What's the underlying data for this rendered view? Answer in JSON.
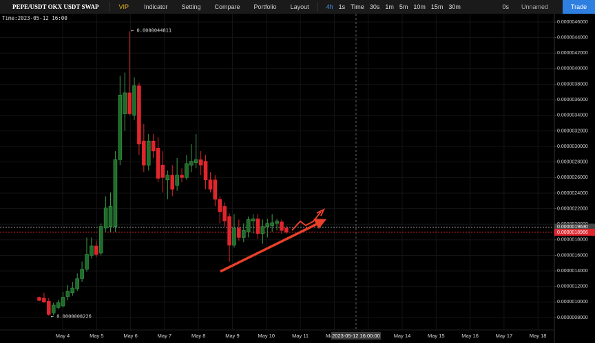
{
  "toolbar": {
    "symbol": "PEPE/USDT OKX USDT SWAP",
    "items": [
      "VIP",
      "Indicator",
      "Setting",
      "Compare",
      "Portfolio",
      "Layout"
    ],
    "intervals": [
      "4h",
      "1s",
      "Time",
      "30s",
      "1m",
      "5m",
      "10m",
      "15m",
      "30m"
    ],
    "timer": "0s",
    "layout_name": "Unnamed",
    "trade": "Trade"
  },
  "chart_data": {
    "type": "candlestick",
    "info": "Time:2023-05-12 16:00",
    "up_color": "#1f6b2a",
    "down_color": "#e0262d",
    "grid": true,
    "x": [
      3.31,
      3.45,
      3.59,
      3.73,
      3.87,
      4.01,
      4.15,
      4.29,
      4.43,
      4.57,
      4.71,
      4.85,
      4.99,
      5.13,
      5.27,
      5.41,
      5.55,
      5.69,
      5.83,
      5.97,
      6.11,
      6.25,
      6.39,
      6.53,
      6.67,
      6.81,
      6.95,
      7.09,
      7.23,
      7.37,
      7.51,
      7.65,
      7.79,
      7.93,
      8.07,
      8.21,
      8.35,
      8.49,
      8.63,
      8.77,
      8.91,
      9.05,
      9.19,
      9.33,
      9.47,
      9.61,
      9.75,
      9.89,
      10.03,
      10.17,
      10.31,
      10.45,
      10.59
    ],
    "open": [
      1.06e-06,
      1.05e-06,
      1.01e-06,
      8.6e-07,
      9.3e-07,
      9.5e-07,
      1.07e-06,
      1.12e-06,
      1.17e-06,
      1.3e-06,
      1.42e-06,
      1.6e-06,
      1.72e-06,
      1.63e-06,
      1.95e-06,
      1.97e-06,
      1.97e-06,
      2.83e-06,
      3.42e-06,
      3.69e-06,
      3.4e-06,
      3.78e-06,
      3.07e-06,
      2.76e-06,
      3.07e-06,
      2.98e-06,
      2.76e-06,
      2.57e-06,
      2.63e-06,
      2.5e-06,
      2.63e-06,
      2.6e-06,
      2.76e-06,
      2.79e-06,
      2.83e-06,
      2.81e-06,
      2.57e-06,
      2.57e-06,
      2.32e-06,
      2.23e-06,
      2.1e-06,
      1.73e-06,
      1.95e-06,
      1.83e-06,
      1.9e-06,
      2.04e-06,
      2.07e-06,
      1.88e-06,
      1.97e-06,
      1.98e-06,
      2.01e-06,
      2.03e-06,
      1.95e-06
    ],
    "high": [
      1.07e-06,
      1.12e-06,
      1.05e-06,
      9.9e-07,
      1.03e-06,
      1.13e-06,
      1.22e-06,
      1.26e-06,
      1.37e-06,
      1.52e-06,
      1.83e-06,
      1.83e-06,
      1.79e-06,
      2.01e-06,
      2.36e-06,
      2.41e-06,
      2.94e-06,
      3.91e-06,
      3.95e-06,
      4.4811e-06,
      3.89e-06,
      3.82e-06,
      3.29e-06,
      3.16e-06,
      3.16e-06,
      3.12e-06,
      2.94e-06,
      2.69e-06,
      2.76e-06,
      2.85e-06,
      2.72e-06,
      2.89e-06,
      3.03e-06,
      3.16e-06,
      2.94e-06,
      2.89e-06,
      2.67e-06,
      2.63e-06,
      2.36e-06,
      2.28e-06,
      2.14e-06,
      2.13e-06,
      2.06e-06,
      2.01e-06,
      2.1e-06,
      2.13e-06,
      2.13e-06,
      2.06e-06,
      2.07e-06,
      2.13e-06,
      2.07e-06,
      2.06e-06,
      1.98e-06
    ],
    "low": [
      1.01e-06,
      9.9e-07,
      8.226e-07,
      8.3e-07,
      9.1e-07,
      9.3e-07,
      1.02e-06,
      1.08e-06,
      1.14e-06,
      1.26e-06,
      1.39e-06,
      1.56e-06,
      1.58e-06,
      1.6e-06,
      1.9e-06,
      1.9e-06,
      1.9e-06,
      2.76e-06,
      3.2e-06,
      3.4e-06,
      3.34e-06,
      2.89e-06,
      2.67e-06,
      2.69e-06,
      2.85e-06,
      2.54e-06,
      2.41e-06,
      2.32e-06,
      2.36e-06,
      2.43e-06,
      2.54e-06,
      2.57e-06,
      2.67e-06,
      2.72e-06,
      2.63e-06,
      2.45e-06,
      2.41e-06,
      2.23e-06,
      2.01e-06,
      1.97e-06,
      1.52e-06,
      1.7e-06,
      1.79e-06,
      1.77e-06,
      1.83e-06,
      1.88e-06,
      1.81e-06,
      1.75e-06,
      1.83e-06,
      1.9e-06,
      1.92e-06,
      1.88e-06,
      1.88e-06
    ],
    "close": [
      1.02e-06,
      1e-06,
      8.4e-07,
      9.6e-07,
      9.9e-07,
      1.06e-06,
      1.14e-06,
      1.18e-06,
      1.3e-06,
      1.42e-06,
      1.61e-06,
      1.72e-06,
      1.61e-06,
      1.97e-06,
      2.21e-06,
      2.23e-06,
      2.83e-06,
      3.66e-06,
      3.69e-06,
      3.42e-06,
      3.78e-06,
      3.03e-06,
      2.76e-06,
      3.07e-06,
      2.94e-06,
      2.59e-06,
      2.6e-06,
      2.63e-06,
      2.45e-06,
      2.63e-06,
      2.6e-06,
      2.78e-06,
      2.81e-06,
      2.83e-06,
      2.76e-06,
      2.57e-06,
      2.45e-06,
      2.32e-06,
      2.16e-06,
      2.04e-06,
      1.73e-06,
      1.95e-06,
      1.83e-06,
      1.92e-06,
      2.06e-06,
      2.07e-06,
      1.88e-06,
      1.97e-06,
      2.01e-06,
      2.02e-06,
      2.04e-06,
      1.92e-06,
      1.8966e-06
    ],
    "extreme_labels": {
      "high": "← 0.0000044811",
      "low": "← 0.0000008226"
    },
    "price_lines": [
      {
        "value": 1.963e-06,
        "label": "0.0000019630",
        "color": "#9a9a9a"
      },
      {
        "value": 1.8966e-06,
        "label": "0.0000018966",
        "color": "#e0262d"
      }
    ],
    "crosshair": {
      "x": 12.64,
      "label": "2023-05-12 16:00:00"
    },
    "xlim": [
      2.154,
      18.483
    ],
    "xticks": [
      {
        "value": 4,
        "label": "May 4"
      },
      {
        "value": 5,
        "label": "May 5"
      },
      {
        "value": 6,
        "label": "May 6"
      },
      {
        "value": 7,
        "label": "May 7"
      },
      {
        "value": 8,
        "label": "May 8"
      },
      {
        "value": 9,
        "label": "May 9"
      },
      {
        "value": 10,
        "label": "May 10"
      },
      {
        "value": 11,
        "label": "May 11"
      },
      {
        "value": 12,
        "label": "May 12"
      },
      {
        "value": 13,
        "label": "May 13"
      },
      {
        "value": 14,
        "label": "May 14"
      },
      {
        "value": 15,
        "label": "May 15"
      },
      {
        "value": 16,
        "label": "May 16"
      },
      {
        "value": 17,
        "label": "May 17"
      },
      {
        "value": 18,
        "label": "May 18"
      }
    ],
    "ylim": [
      6.41e-07,
      4.706e-06
    ],
    "yticks": [
      {
        "value": 8e-07,
        "label": "0.0000008000"
      },
      {
        "value": 1e-06,
        "label": "0.0000010000"
      },
      {
        "value": 1.2e-06,
        "label": "0.0000012000"
      },
      {
        "value": 1.4e-06,
        "label": "0.0000014000"
      },
      {
        "value": 1.6e-06,
        "label": "0.0000016000"
      },
      {
        "value": 1.8e-06,
        "label": "0.0000018000"
      },
      {
        "value": 2e-06,
        "label": "0.0000020000"
      },
      {
        "value": 2.2e-06,
        "label": "0.0000022000"
      },
      {
        "value": 2.4e-06,
        "label": "0.0000024000"
      },
      {
        "value": 2.6e-06,
        "label": "0.0000026000"
      },
      {
        "value": 2.8e-06,
        "label": "0.0000028000"
      },
      {
        "value": 3e-06,
        "label": "0.0000030000"
      },
      {
        "value": 3.2e-06,
        "label": "0.0000032000"
      },
      {
        "value": 3.4e-06,
        "label": "0.0000034000"
      },
      {
        "value": 3.6e-06,
        "label": "0.0000036000"
      },
      {
        "value": 3.8e-06,
        "label": "0.0000038000"
      },
      {
        "value": 4e-06,
        "label": "0.0000040000"
      },
      {
        "value": 4.2e-06,
        "label": "0.0000042000"
      },
      {
        "value": 4.4e-06,
        "label": "0.0000044000"
      },
      {
        "value": 4.6e-06,
        "label": "0.0000046000"
      }
    ]
  }
}
